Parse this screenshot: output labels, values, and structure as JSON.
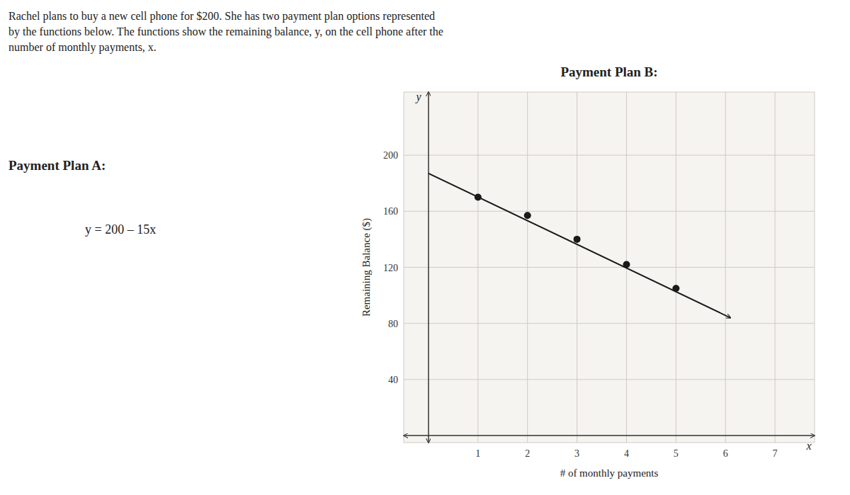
{
  "chart_data": {
    "type": "scatter",
    "title": "Payment Plan B:",
    "annotations": [
      "Rachel plans to buy a new cell phone for $200.  She has two payment plan options represented",
      "by the functions below.  The functions show the remaining balance, y, on the cell phone after the",
      "number of monthly payments, x.",
      "Payment Plan A:",
      "y = 200 – 15x",
      "y",
      "x"
    ],
    "xlabel": "# of monthly payments",
    "ylabel": "Remaining Balance ($)",
    "xlim": [
      -0.5,
      7.8
    ],
    "ylim": [
      -5,
      245
    ],
    "xticks": [
      1,
      2,
      3,
      4,
      5,
      6,
      7
    ],
    "yticks": [
      40,
      80,
      120,
      160,
      200
    ],
    "grid": true,
    "series": [
      {
        "type": "scatter",
        "marker": "circle",
        "color": "#1a1a1a",
        "x": [
          1,
          2,
          3,
          4,
          5
        ],
        "values": [
          170,
          157,
          140,
          122,
          105
        ]
      },
      {
        "type": "line",
        "line_style": "arrow",
        "color": "#1a1a1a",
        "x": [
          0.0,
          6.1
        ],
        "values": [
          187,
          84
        ]
      }
    ]
  }
}
